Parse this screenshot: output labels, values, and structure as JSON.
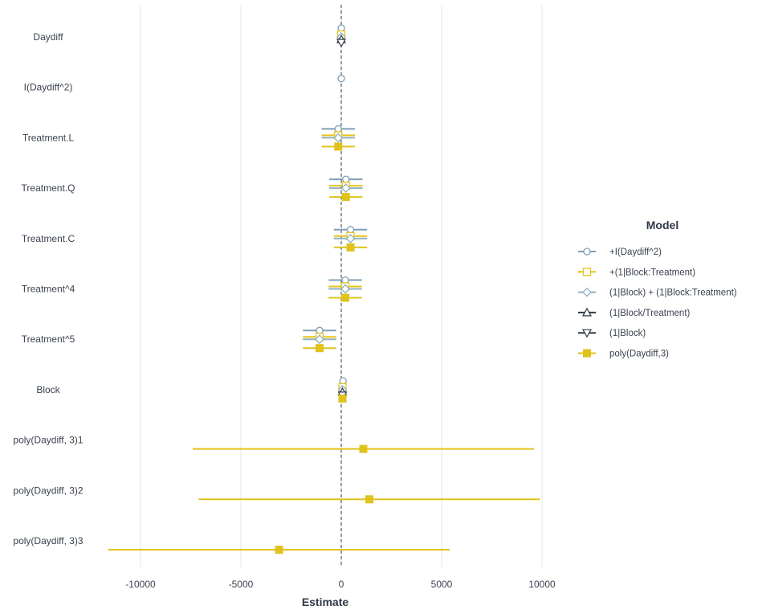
{
  "chart_data": {
    "type": "coefficient-plot",
    "xlabel": "Estimate",
    "xlim": [
      -12000,
      11200
    ],
    "x_ticks": [
      -10000,
      -5000,
      0,
      5000,
      10000
    ],
    "x_tick_labels": [
      "-10000",
      "-5000",
      "0",
      "5000",
      "10000"
    ],
    "reference_line": 0,
    "grid": "vertical major gridlines",
    "legend_position": "right",
    "legend_title": "Model",
    "terms": [
      "Daydiff",
      "I(Daydiff^2)",
      "Treatment.L",
      "Treatment.Q",
      "Treatment.C",
      "Treatment^4",
      "Treatment^5",
      "Block",
      "poly(Daydiff, 3)1",
      "poly(Daydiff, 3)2",
      "poly(Daydiff, 3)3"
    ],
    "series": [
      {
        "name": "+I(Daydiff^2)",
        "color": "#7f9fb4",
        "shape": "circle-open",
        "points": [
          {
            "term": "Daydiff",
            "estimate": 0,
            "low": -80,
            "high": 80
          },
          {
            "term": "I(Daydiff^2)",
            "estimate": 0,
            "low": -20,
            "high": 20
          },
          {
            "term": "Treatment.L",
            "estimate": -150,
            "low": -980,
            "high": 680
          },
          {
            "term": "Treatment.Q",
            "estimate": 230,
            "low": -600,
            "high": 1060
          },
          {
            "term": "Treatment.C",
            "estimate": 460,
            "low": -370,
            "high": 1290
          },
          {
            "term": "Treatment^4",
            "estimate": 200,
            "low": -630,
            "high": 1030
          },
          {
            "term": "Treatment^5",
            "estimate": -1080,
            "low": -1910,
            "high": -250
          },
          {
            "term": "Block",
            "estimate": 90,
            "low": 30,
            "high": 150
          }
        ]
      },
      {
        "name": "+(1|Block:Treatment)",
        "color": "#e6c41d",
        "shape": "square-open",
        "points": [
          {
            "term": "Daydiff",
            "estimate": 0,
            "low": -130,
            "high": 130
          },
          {
            "term": "Treatment.L",
            "estimate": -150,
            "low": -980,
            "high": 680
          },
          {
            "term": "Treatment.Q",
            "estimate": 230,
            "low": -600,
            "high": 1060
          },
          {
            "term": "Treatment.C",
            "estimate": 460,
            "low": -370,
            "high": 1290
          },
          {
            "term": "Treatment^4",
            "estimate": 200,
            "low": -630,
            "high": 1030
          },
          {
            "term": "Treatment^5",
            "estimate": -1080,
            "low": -1910,
            "high": -250
          },
          {
            "term": "Block",
            "estimate": 60,
            "low": 0,
            "high": 120
          }
        ]
      },
      {
        "name": "(1|Block) + (1|Block:Treatment)",
        "color": "#8fb0c0",
        "shape": "diamond-open",
        "points": [
          {
            "term": "Daydiff",
            "estimate": 0,
            "low": -80,
            "high": 80
          },
          {
            "term": "Treatment.L",
            "estimate": -150,
            "low": -980,
            "high": 680
          },
          {
            "term": "Treatment.Q",
            "estimate": 230,
            "low": -600,
            "high": 1060
          },
          {
            "term": "Treatment.C",
            "estimate": 460,
            "low": -370,
            "high": 1290
          },
          {
            "term": "Treatment^4",
            "estimate": 200,
            "low": -630,
            "high": 1030
          },
          {
            "term": "Treatment^5",
            "estimate": -1080,
            "low": -1910,
            "high": -250
          },
          {
            "term": "Block",
            "estimate": 60,
            "low": 0,
            "high": 120
          }
        ]
      },
      {
        "name": "(1|Block/Treatment)",
        "color": "#2f3846",
        "shape": "triangle-up-open",
        "points": [
          {
            "term": "Daydiff",
            "estimate": 0,
            "low": -80,
            "high": 80
          },
          {
            "term": "Block",
            "estimate": 60,
            "low": 0,
            "high": 120
          }
        ]
      },
      {
        "name": "(1|Block)",
        "color": "#2f3846",
        "shape": "triangle-down-open",
        "points": [
          {
            "term": "Daydiff",
            "estimate": 0,
            "low": -80,
            "high": 80
          },
          {
            "term": "Block",
            "estimate": 60,
            "low": 0,
            "high": 120
          }
        ]
      },
      {
        "name": "poly(Daydiff,3)",
        "color": "#e0c21b",
        "shape": "square-filled",
        "points": [
          {
            "term": "Treatment.L",
            "estimate": -150,
            "low": -980,
            "high": 680
          },
          {
            "term": "Treatment.Q",
            "estimate": 230,
            "low": -600,
            "high": 1060
          },
          {
            "term": "Treatment.C",
            "estimate": 460,
            "low": -370,
            "high": 1290
          },
          {
            "term": "Treatment^4",
            "estimate": 200,
            "low": -630,
            "high": 1030
          },
          {
            "term": "Treatment^5",
            "estimate": -1080,
            "low": -1910,
            "high": -250
          },
          {
            "term": "Block",
            "estimate": 60,
            "low": 0,
            "high": 120
          },
          {
            "term": "poly(Daydiff, 3)1",
            "estimate": 1100,
            "low": -7400,
            "high": 9600
          },
          {
            "term": "poly(Daydiff, 3)2",
            "estimate": 1400,
            "low": -7100,
            "high": 9900
          },
          {
            "term": "poly(Daydiff, 3)3",
            "estimate": -3100,
            "low": -11600,
            "high": 5400
          }
        ]
      }
    ]
  }
}
